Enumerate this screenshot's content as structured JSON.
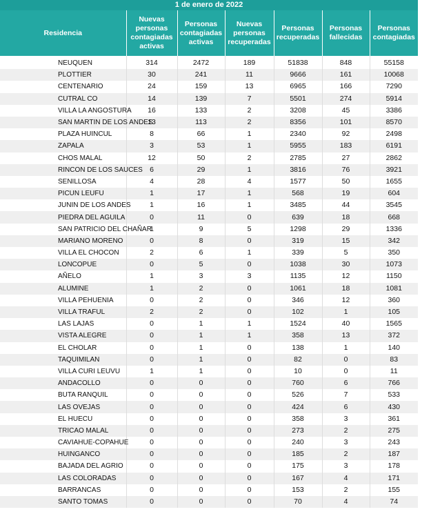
{
  "title": "1 de enero de 2022",
  "table": {
    "headers": [
      "Residencia",
      "Nuevas personas contagiadas activas",
      "Personas contagiadas activas",
      "Nuevas personas recuperadas",
      "Personas recuperadas",
      "Personas fallecidas",
      "Personas contagiadas"
    ],
    "rows": [
      [
        "NEUQUEN",
        314,
        2472,
        189,
        51838,
        848,
        55158
      ],
      [
        "PLOTTIER",
        30,
        241,
        11,
        9666,
        161,
        10068
      ],
      [
        "CENTENARIO",
        24,
        159,
        13,
        6965,
        166,
        7290
      ],
      [
        "CUTRAL CO",
        14,
        139,
        7,
        5501,
        274,
        5914
      ],
      [
        "VILLA LA ANGOSTURA",
        16,
        133,
        2,
        3208,
        45,
        3386
      ],
      [
        "SAN MARTIN DE LOS ANDES",
        13,
        113,
        2,
        8356,
        101,
        8570
      ],
      [
        "PLAZA HUINCUL",
        8,
        66,
        1,
        2340,
        92,
        2498
      ],
      [
        "ZAPALA",
        3,
        53,
        1,
        5955,
        183,
        6191
      ],
      [
        "CHOS MALAL",
        12,
        50,
        2,
        2785,
        27,
        2862
      ],
      [
        "RINCON DE LOS SAUCES",
        6,
        29,
        1,
        3816,
        76,
        3921
      ],
      [
        "SENILLOSA",
        4,
        28,
        4,
        1577,
        50,
        1655
      ],
      [
        "PICUN LEUFU",
        1,
        17,
        1,
        568,
        19,
        604
      ],
      [
        "JUNIN DE LOS ANDES",
        1,
        16,
        1,
        3485,
        44,
        3545
      ],
      [
        "PIEDRA DEL AGUILA",
        0,
        11,
        0,
        639,
        18,
        668
      ],
      [
        "SAN PATRICIO DEL CHAÑAR",
        1,
        9,
        5,
        1298,
        29,
        1336
      ],
      [
        "MARIANO MORENO",
        0,
        8,
        0,
        319,
        15,
        342
      ],
      [
        "VILLA EL CHOCON",
        2,
        6,
        1,
        339,
        5,
        350
      ],
      [
        "LONCOPUE",
        0,
        5,
        0,
        1038,
        30,
        1073
      ],
      [
        "AÑELO",
        1,
        3,
        3,
        1135,
        12,
        1150
      ],
      [
        "ALUMINE",
        1,
        2,
        0,
        1061,
        18,
        1081
      ],
      [
        "VILLA PEHUENIA",
        0,
        2,
        0,
        346,
        12,
        360
      ],
      [
        "VILLA TRAFUL",
        2,
        2,
        0,
        102,
        1,
        105
      ],
      [
        "LAS LAJAS",
        0,
        1,
        1,
        1524,
        40,
        1565
      ],
      [
        "VISTA ALEGRE",
        0,
        1,
        1,
        358,
        13,
        372
      ],
      [
        "EL CHOLAR",
        0,
        1,
        0,
        138,
        1,
        140
      ],
      [
        "TAQUIMILAN",
        0,
        1,
        0,
        82,
        0,
        83
      ],
      [
        "VILLA CURI LEUVU",
        1,
        1,
        0,
        10,
        0,
        11
      ],
      [
        "ANDACOLLO",
        0,
        0,
        0,
        760,
        6,
        766
      ],
      [
        "BUTA RANQUIL",
        0,
        0,
        0,
        526,
        7,
        533
      ],
      [
        "LAS OVEJAS",
        0,
        0,
        0,
        424,
        6,
        430
      ],
      [
        "EL HUECU",
        0,
        0,
        0,
        358,
        3,
        361
      ],
      [
        "TRICAO MALAL",
        0,
        0,
        0,
        273,
        2,
        275
      ],
      [
        "CAVIAHUE-COPAHUE",
        0,
        0,
        0,
        240,
        3,
        243
      ],
      [
        "HUINGANCO",
        0,
        0,
        0,
        185,
        2,
        187
      ],
      [
        "BAJADA DEL AGRIO",
        0,
        0,
        0,
        175,
        3,
        178
      ],
      [
        "LAS COLORADAS",
        0,
        0,
        0,
        167,
        4,
        171
      ],
      [
        "BARRANCAS",
        0,
        0,
        0,
        153,
        2,
        155
      ],
      [
        "SANTO TOMAS",
        0,
        0,
        0,
        70,
        4,
        74
      ]
    ]
  }
}
